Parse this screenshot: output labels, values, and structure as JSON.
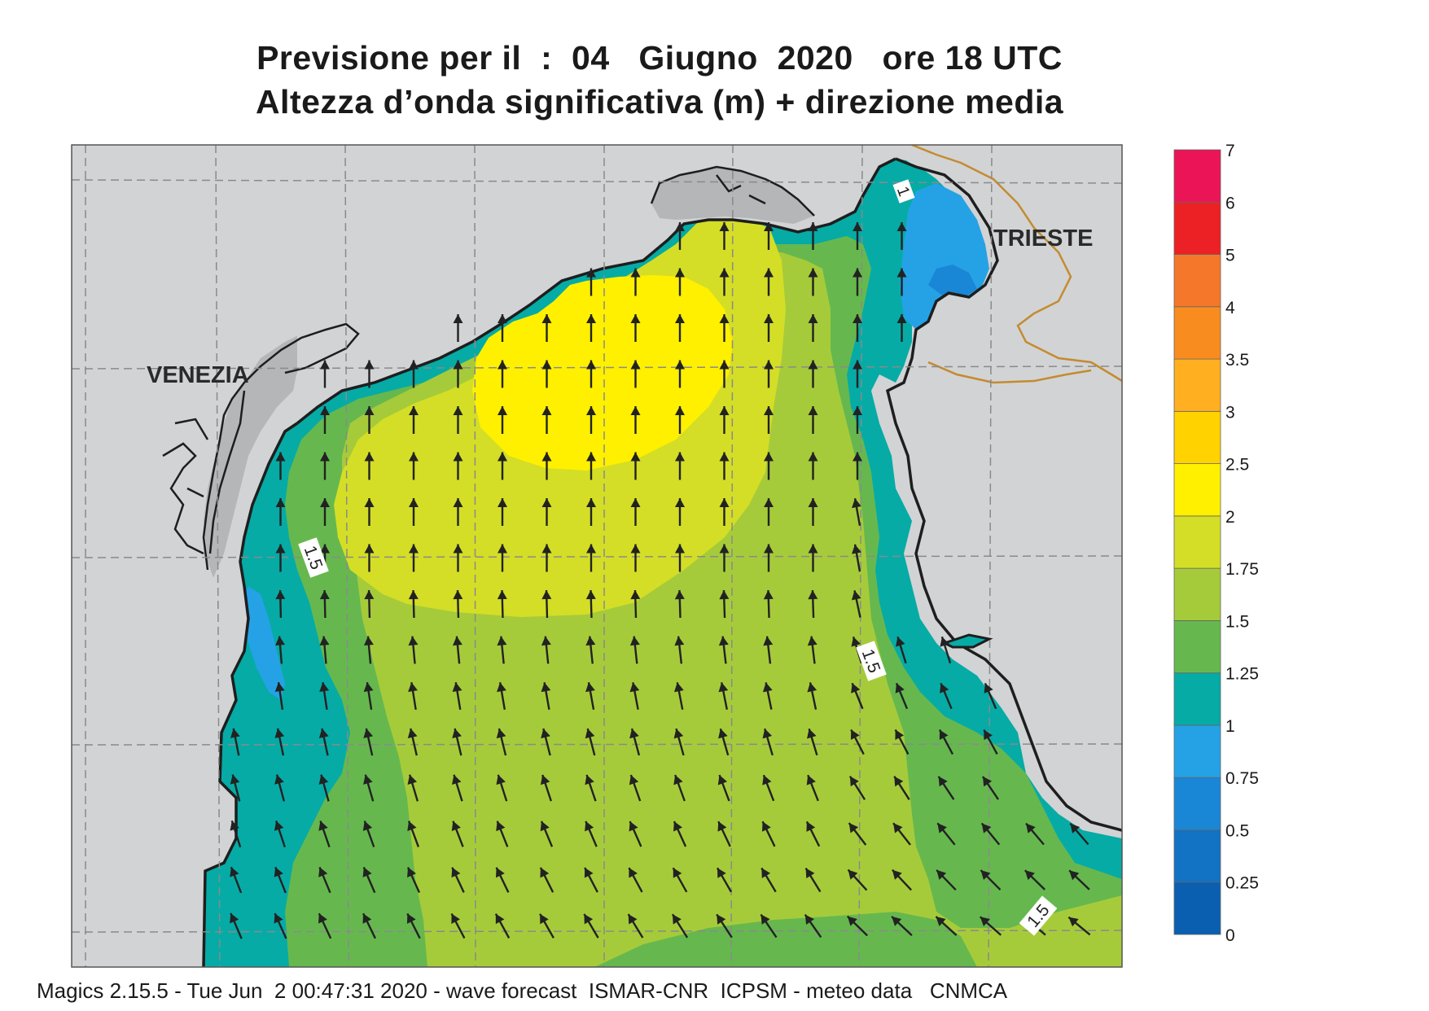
{
  "header": {
    "title_line1": "Previsione per il  :  04   Giugno  2020   ore 18 UTC",
    "title_line2": "Altezza d’onda significativa (m) + direzione media"
  },
  "map": {
    "place_labels": [
      "VENEZIA",
      "TRIESTE"
    ],
    "contour_labels": [
      "1",
      "1.5",
      "1.5",
      "1.5"
    ],
    "colors": {
      "land": "#d2d3d5",
      "grid": "#8a8a8a",
      "coast": "#1e1e1e",
      "border": "#c48b2f",
      "arrow": "#222222"
    }
  },
  "legend": {
    "levels": [
      "0",
      "0.25",
      "0.5",
      "0.75",
      "1",
      "1.25",
      "1.5",
      "1.75",
      "2",
      "2.5",
      "3",
      "3.5",
      "4",
      "5",
      "6",
      "7"
    ],
    "colors": [
      "#0a5fb0",
      "#1272c4",
      "#1a86d6",
      "#25a2e6",
      "#06aba6",
      "#66b84e",
      "#a6cb3a",
      "#d4de26",
      "#fff000",
      "#ffd200",
      "#ffaf1f",
      "#f98c1f",
      "#f5772a",
      "#ec2125",
      "#eb1456"
    ]
  },
  "footer": {
    "text": "Magics 2.15.5 - Tue Jun  2 00:47:31 2020 - wave forecast  ISMAR-CNR  ICPSM - meteo data   CNMCA"
  }
}
